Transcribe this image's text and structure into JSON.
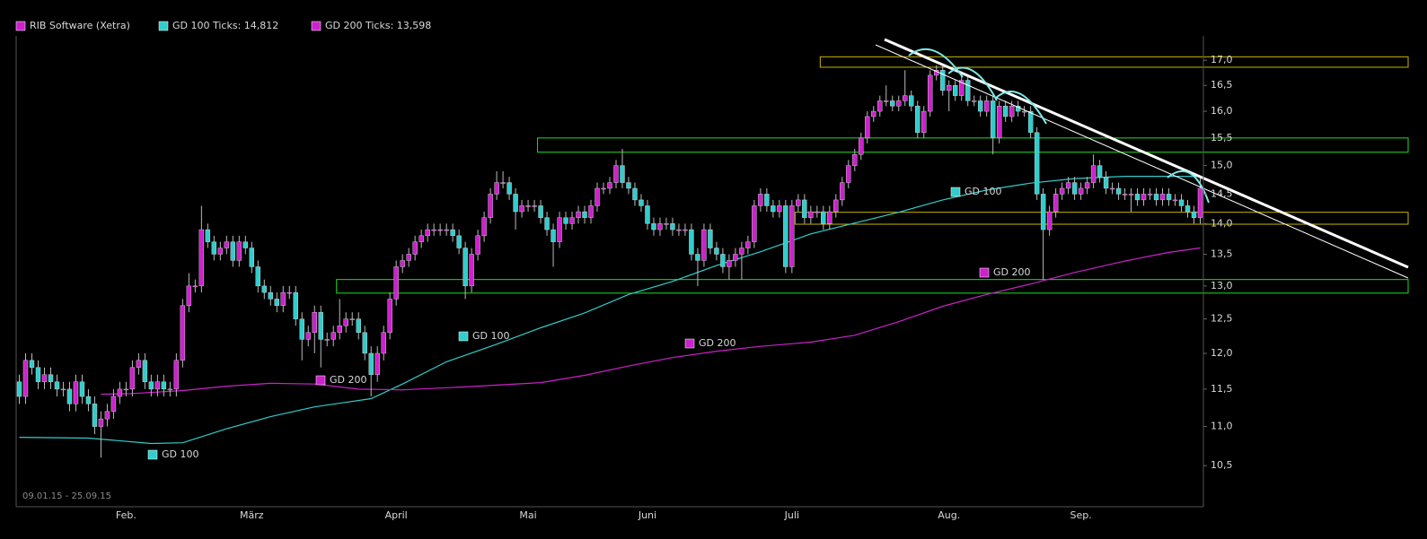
{
  "chart_data": {
    "type": "candlestick",
    "name": "RIB Software (Xetra)",
    "up_color": "#cc22cc",
    "down_color": "#33cccc",
    "wick_color": "#bbbbbb",
    "period": "09.01.15 - 25.09.15",
    "log_scale": true,
    "grid": true,
    "xlim": [
      -0.5,
      188.5
    ],
    "ylim": [
      10.0,
      17.5
    ],
    "yticks": [
      {
        "value": 10.5,
        "label": "10,5"
      },
      {
        "value": 11.0,
        "label": "11,0"
      },
      {
        "value": 11.5,
        "label": "11,5"
      },
      {
        "value": 12.0,
        "label": "12,0"
      },
      {
        "value": 12.5,
        "label": "12,5"
      },
      {
        "value": 13.0,
        "label": "13,0"
      },
      {
        "value": 13.5,
        "label": "13,5"
      },
      {
        "value": 14.0,
        "label": "14,0"
      },
      {
        "value": 14.5,
        "label": "14,5"
      },
      {
        "value": 15.0,
        "label": "15,0"
      },
      {
        "value": 15.5,
        "label": "15,5"
      },
      {
        "value": 16.0,
        "label": "16,0"
      },
      {
        "value": 16.5,
        "label": "16,5"
      },
      {
        "value": 17.0,
        "label": "17,0"
      }
    ],
    "xticks": [
      {
        "value": 17,
        "label": "Feb."
      },
      {
        "value": 37,
        "label": "März"
      },
      {
        "value": 60,
        "label": "April"
      },
      {
        "value": 81,
        "label": "Mai"
      },
      {
        "value": 100,
        "label": "Juni"
      },
      {
        "value": 123,
        "label": "Juli"
      },
      {
        "value": 148,
        "label": "Aug."
      },
      {
        "value": 169,
        "label": "Sep."
      }
    ],
    "open": [
      11.6,
      11.4,
      11.9,
      11.8,
      11.6,
      11.7,
      11.6,
      11.5,
      11.5,
      11.3,
      11.6,
      11.4,
      11.3,
      11.0,
      11.1,
      11.2,
      11.4,
      11.5,
      11.5,
      11.8,
      11.9,
      11.6,
      11.5,
      11.6,
      11.5,
      11.5,
      11.9,
      12.7,
      13.0,
      13.0,
      13.9,
      13.7,
      13.5,
      13.6,
      13.7,
      13.4,
      13.7,
      13.6,
      13.3,
      13.0,
      12.9,
      12.8,
      12.7,
      12.9,
      12.9,
      12.5,
      12.2,
      12.3,
      12.6,
      12.2,
      12.2,
      12.3,
      12.4,
      12.5,
      12.5,
      12.3,
      12.0,
      11.7,
      12.0,
      12.3,
      12.8,
      13.3,
      13.4,
      13.5,
      13.7,
      13.8,
      13.9,
      13.9,
      13.9,
      13.9,
      13.8,
      13.6,
      13.0,
      13.5,
      13.8,
      14.1,
      14.5,
      14.7,
      14.7,
      14.5,
      14.2,
      14.3,
      14.3,
      14.3,
      14.1,
      13.9,
      13.7,
      14.1,
      14.0,
      14.1,
      14.2,
      14.1,
      14.3,
      14.6,
      14.6,
      14.7,
      15.0,
      14.7,
      14.6,
      14.4,
      14.3,
      14.0,
      13.9,
      14.0,
      14.0,
      13.9,
      13.9,
      13.9,
      13.5,
      13.4,
      13.9,
      13.6,
      13.5,
      13.3,
      13.4,
      13.5,
      13.6,
      13.7,
      14.3,
      14.5,
      14.3,
      14.2,
      14.3,
      13.3,
      14.3,
      14.4,
      14.1,
      14.2,
      14.2,
      14.0,
      14.2,
      14.4,
      14.7,
      15.0,
      15.2,
      15.5,
      15.9,
      16.0,
      16.2,
      16.2,
      16.1,
      16.2,
      16.3,
      16.1,
      15.6,
      16.0,
      16.7,
      16.8,
      16.4,
      16.5,
      16.3,
      16.6,
      16.2,
      16.2,
      16.0,
      16.2,
      15.5,
      16.1,
      15.9,
      16.1,
      16.0,
      16.0,
      15.6,
      14.5,
      13.9,
      14.2,
      14.5,
      14.6,
      14.7,
      14.5,
      14.6,
      14.7,
      15.0,
      14.8,
      14.6,
      14.6,
      14.5,
      14.5,
      14.5,
      14.4,
      14.5,
      14.5,
      14.4,
      14.5,
      14.4,
      14.4,
      14.3,
      14.2,
      14.1
    ],
    "high": [
      11.7,
      12.0,
      12.0,
      11.9,
      11.8,
      11.8,
      11.7,
      11.6,
      11.6,
      11.7,
      11.7,
      11.5,
      11.4,
      11.2,
      11.3,
      11.5,
      11.6,
      11.6,
      11.9,
      12.0,
      12.0,
      11.7,
      11.7,
      11.7,
      11.6,
      12.0,
      12.8,
      13.2,
      13.1,
      14.3,
      14.0,
      13.8,
      13.7,
      13.8,
      13.8,
      13.8,
      13.8,
      13.7,
      13.4,
      13.1,
      13.0,
      12.9,
      13.0,
      13.0,
      13.0,
      12.6,
      12.4,
      12.7,
      12.7,
      12.3,
      12.4,
      12.8,
      12.6,
      12.6,
      12.6,
      12.4,
      12.1,
      12.1,
      12.4,
      12.9,
      13.4,
      13.5,
      13.6,
      13.8,
      13.9,
      14.0,
      14.0,
      14.0,
      14.0,
      14.0,
      13.9,
      13.7,
      13.6,
      13.9,
      14.2,
      14.6,
      14.9,
      14.9,
      14.8,
      14.6,
      14.4,
      14.4,
      14.4,
      14.4,
      14.2,
      14.0,
      14.2,
      14.2,
      14.2,
      14.3,
      14.3,
      14.4,
      14.7,
      14.7,
      14.8,
      15.1,
      15.3,
      14.8,
      14.7,
      14.5,
      14.4,
      14.1,
      14.1,
      14.1,
      14.1,
      14.0,
      14.0,
      14.0,
      13.6,
      14.0,
      14.0,
      13.7,
      13.6,
      13.5,
      13.6,
      13.7,
      13.8,
      14.4,
      14.6,
      14.6,
      14.4,
      14.4,
      14.4,
      14.4,
      14.5,
      14.5,
      14.3,
      14.3,
      14.3,
      14.3,
      14.5,
      14.8,
      15.1,
      15.3,
      15.6,
      16.0,
      16.1,
      16.3,
      16.5,
      16.3,
      16.3,
      16.8,
      16.4,
      16.2,
      16.1,
      16.8,
      16.9,
      16.9,
      16.6,
      16.6,
      16.7,
      16.7,
      16.3,
      16.3,
      16.3,
      16.3,
      16.2,
      16.2,
      16.2,
      16.2,
      16.1,
      16.1,
      15.7,
      14.6,
      14.3,
      14.6,
      14.7,
      14.8,
      14.8,
      14.7,
      14.8,
      15.2,
      15.1,
      14.9,
      14.7,
      14.7,
      14.6,
      14.6,
      14.6,
      14.6,
      14.6,
      14.6,
      14.6,
      14.6,
      14.5,
      14.5,
      14.4,
      14.3,
      14.8
    ],
    "low": [
      11.3,
      11.3,
      11.7,
      11.5,
      11.5,
      11.5,
      11.4,
      11.4,
      11.2,
      11.2,
      11.3,
      11.2,
      10.9,
      10.6,
      11.0,
      11.1,
      11.3,
      11.4,
      11.4,
      11.7,
      11.5,
      11.4,
      11.4,
      11.4,
      11.4,
      11.4,
      11.8,
      12.6,
      12.9,
      12.9,
      13.6,
      13.4,
      13.4,
      13.5,
      13.3,
      13.3,
      13.5,
      13.2,
      12.9,
      12.8,
      12.7,
      12.6,
      12.6,
      12.8,
      12.4,
      11.9,
      12.1,
      12.0,
      11.8,
      12.1,
      12.1,
      12.2,
      12.3,
      12.4,
      12.2,
      11.9,
      11.4,
      11.6,
      11.9,
      12.2,
      12.7,
      13.2,
      13.3,
      13.4,
      13.6,
      13.7,
      13.8,
      13.8,
      13.8,
      13.7,
      13.5,
      12.8,
      12.9,
      13.4,
      13.7,
      14.0,
      14.4,
      14.6,
      14.4,
      13.9,
      14.1,
      14.2,
      14.2,
      14.0,
      13.8,
      13.3,
      13.6,
      13.9,
      13.9,
      14.0,
      14.0,
      14.0,
      14.2,
      14.5,
      14.5,
      14.6,
      14.6,
      14.5,
      14.3,
      14.2,
      13.9,
      13.8,
      13.8,
      13.9,
      13.8,
      13.8,
      13.8,
      13.4,
      13.0,
      13.3,
      13.5,
      13.4,
      13.2,
      13.1,
      13.3,
      13.1,
      13.5,
      13.6,
      14.2,
      14.2,
      14.1,
      14.1,
      13.2,
      13.2,
      14.2,
      14.0,
      14.0,
      14.1,
      13.9,
      13.9,
      14.1,
      14.3,
      14.6,
      14.9,
      15.1,
      15.4,
      15.8,
      15.9,
      16.1,
      16.0,
      16.0,
      16.1,
      16.0,
      15.5,
      15.5,
      15.9,
      16.6,
      16.3,
      16.0,
      16.2,
      16.2,
      16.1,
      16.1,
      15.9,
      15.9,
      15.2,
      15.4,
      15.8,
      15.8,
      15.9,
      15.9,
      15.5,
      14.4,
      13.1,
      13.8,
      14.1,
      14.4,
      14.5,
      14.4,
      14.4,
      14.5,
      14.6,
      14.7,
      14.5,
      14.5,
      14.4,
      14.4,
      14.2,
      14.3,
      14.3,
      14.4,
      14.3,
      14.3,
      14.3,
      14.3,
      14.2,
      14.1,
      14.0,
      14.0
    ],
    "close": [
      11.4,
      11.9,
      11.8,
      11.6,
      11.7,
      11.6,
      11.5,
      11.5,
      11.3,
      11.6,
      11.4,
      11.3,
      11.0,
      11.1,
      11.2,
      11.4,
      11.5,
      11.5,
      11.8,
      11.9,
      11.6,
      11.5,
      11.6,
      11.5,
      11.5,
      11.9,
      12.7,
      13.0,
      13.0,
      13.9,
      13.7,
      13.5,
      13.6,
      13.7,
      13.4,
      13.7,
      13.6,
      13.3,
      13.0,
      12.9,
      12.8,
      12.7,
      12.9,
      12.9,
      12.5,
      12.2,
      12.3,
      12.6,
      12.2,
      12.2,
      12.3,
      12.4,
      12.5,
      12.5,
      12.3,
      12.0,
      11.7,
      12.0,
      12.3,
      12.8,
      13.3,
      13.4,
      13.5,
      13.7,
      13.8,
      13.9,
      13.9,
      13.9,
      13.9,
      13.8,
      13.6,
      13.0,
      13.5,
      13.8,
      14.1,
      14.5,
      14.7,
      14.7,
      14.5,
      14.2,
      14.3,
      14.3,
      14.3,
      14.1,
      13.9,
      13.7,
      14.1,
      14.0,
      14.1,
      14.2,
      14.1,
      14.3,
      14.6,
      14.6,
      14.7,
      15.0,
      14.7,
      14.6,
      14.4,
      14.3,
      14.0,
      13.9,
      14.0,
      14.0,
      13.9,
      13.9,
      13.9,
      13.5,
      13.4,
      13.9,
      13.6,
      13.5,
      13.3,
      13.4,
      13.5,
      13.6,
      13.7,
      14.3,
      14.5,
      14.3,
      14.2,
      14.3,
      13.3,
      14.3,
      14.4,
      14.1,
      14.2,
      14.2,
      14.0,
      14.2,
      14.4,
      14.7,
      15.0,
      15.2,
      15.5,
      15.9,
      16.0,
      16.2,
      16.2,
      16.1,
      16.2,
      16.3,
      16.1,
      15.6,
      16.0,
      16.7,
      16.8,
      16.4,
      16.5,
      16.3,
      16.6,
      16.2,
      16.2,
      16.0,
      16.2,
      15.5,
      16.1,
      15.9,
      16.1,
      16.0,
      16.0,
      15.6,
      14.5,
      13.9,
      14.2,
      14.5,
      14.6,
      14.7,
      14.5,
      14.6,
      14.7,
      15.0,
      14.8,
      14.6,
      14.6,
      14.5,
      14.5,
      14.5,
      14.4,
      14.5,
      14.5,
      14.4,
      14.5,
      14.4,
      14.4,
      14.3,
      14.2,
      14.1,
      14.6
    ],
    "lines": [
      {
        "name": "GD 100 Ticks: 14,812",
        "color": "#33cccc",
        "x": [
          0,
          11,
          21,
          26,
          33,
          40,
          47,
          56,
          61,
          68,
          76,
          83,
          90,
          97,
          104,
          111,
          118,
          126,
          133,
          140,
          147,
          154,
          161,
          168,
          176,
          183,
          188
        ],
        "values": [
          10.86,
          10.85,
          10.78,
          10.79,
          10.97,
          11.13,
          11.26,
          11.37,
          11.57,
          11.88,
          12.13,
          12.37,
          12.59,
          12.87,
          13.07,
          13.32,
          13.54,
          13.83,
          14.01,
          14.19,
          14.4,
          14.57,
          14.69,
          14.77,
          14.81,
          14.81,
          14.81
        ]
      },
      {
        "name": "GD 200 Ticks: 13,598",
        "color": "#cc22cc",
        "x": [
          13,
          18,
          26,
          33,
          40,
          47,
          54,
          61,
          71,
          83,
          90,
          97,
          104,
          111,
          118,
          126,
          133,
          140,
          147,
          154,
          161,
          168,
          176,
          183,
          188
        ],
        "values": [
          11.43,
          11.44,
          11.48,
          11.54,
          11.58,
          11.57,
          11.5,
          11.49,
          11.53,
          11.59,
          11.69,
          11.82,
          11.94,
          12.03,
          12.1,
          12.16,
          12.26,
          12.46,
          12.69,
          12.87,
          13.03,
          13.21,
          13.39,
          13.53,
          13.6
        ]
      }
    ],
    "zones": [
      {
        "start": 127.5,
        "low": 16.86,
        "high": 17.07,
        "color": "#c8b400"
      },
      {
        "start": 82.5,
        "low": 15.24,
        "high": 15.5,
        "color": "#22dd22"
      },
      {
        "start": 123.5,
        "low": 13.99,
        "high": 14.19,
        "color": "#c8b400"
      },
      {
        "start": 50.5,
        "low": 12.89,
        "high": 13.1,
        "color": "#22dd22"
      }
    ],
    "annotations": [
      {
        "text": "GD 100",
        "color": "#33cccc"
      },
      {
        "text": "GD 100",
        "color": "#33cccc"
      },
      {
        "text": "GD 100",
        "color": "#33cccc"
      },
      {
        "text": "GD 200",
        "color": "#cc22cc"
      },
      {
        "text": "GD 200",
        "color": "#cc22cc"
      },
      {
        "text": "GD 200",
        "color": "#cc22cc"
      }
    ]
  }
}
